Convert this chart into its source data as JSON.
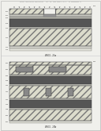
{
  "bg_color": "#f0f0ec",
  "title_text": "Patent Application Publication   Apr. 30, 2009 Sheet 5 of 5   US 0000000000 A1",
  "fig_a_label": "FIG. 3a",
  "fig_b_label": "FIG. 3b",
  "hatch_color": "#aaaaaa",
  "metal_dark": "#555555",
  "metal_mid": "#888888",
  "metal_light": "#cccccc",
  "insulator_fc": "#dcdccc",
  "line_color": "#444444",
  "label_color": "#555555",
  "arrow_color": "#555555"
}
